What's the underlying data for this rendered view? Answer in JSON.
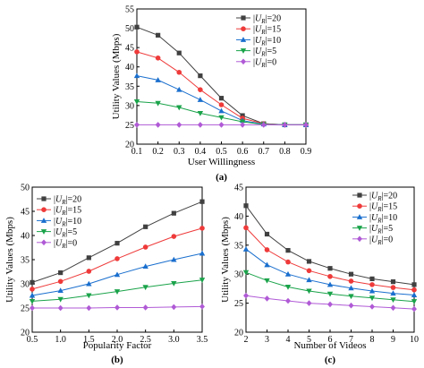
{
  "legend_prefix": "U",
  "legend_sub": "R",
  "colors": [
    "#404040",
    "#ef3a3a",
    "#1a6fce",
    "#1aa34a",
    "#b05ad6"
  ],
  "markers": [
    "square",
    "circle",
    "triangle-up",
    "triangle-down",
    "diamond"
  ],
  "chart_data": [
    {
      "type": "line",
      "panel_label": "(a)",
      "xlabel": "User Willingness",
      "ylabel": "Utility Values (Mbps)",
      "xlim": [
        0.1,
        0.9
      ],
      "ylim": [
        20,
        55
      ],
      "xticks": [
        "0.1",
        "0.2",
        "0.3",
        "0.4",
        "0.5",
        "0.6",
        "0.7",
        "0.8",
        "0.9"
      ],
      "yticks": [
        "20",
        "25",
        "30",
        "35",
        "40",
        "45",
        "50",
        "55"
      ],
      "legend_position": "top-right",
      "x": [
        0.1,
        0.2,
        0.3,
        0.4,
        0.5,
        0.6,
        0.7,
        0.8,
        0.9
      ],
      "series": [
        {
          "legend_value": "=20",
          "values": [
            50.3,
            48.2,
            43.6,
            37.7,
            31.9,
            27.4,
            25.3,
            25.0,
            25.0
          ]
        },
        {
          "legend_value": "=15",
          "values": [
            43.9,
            42.3,
            38.6,
            34.1,
            30.2,
            26.7,
            25.3,
            25.0,
            25.0
          ]
        },
        {
          "legend_value": "=10",
          "values": [
            37.7,
            36.6,
            34.1,
            31.5,
            28.6,
            26.1,
            25.2,
            25.0,
            25.0
          ]
        },
        {
          "legend_value": "=5",
          "values": [
            31.0,
            30.6,
            29.5,
            28.0,
            26.9,
            25.8,
            25.1,
            25.0,
            25.0
          ]
        },
        {
          "legend_value": "=0",
          "values": [
            25.0,
            25.0,
            25.0,
            25.0,
            25.0,
            25.0,
            25.0,
            25.0,
            25.0
          ]
        }
      ]
    },
    {
      "type": "line",
      "panel_label": "(b)",
      "xlabel": "Popularity Factor",
      "ylabel": "Utility Values (Mbps)",
      "xlim": [
        0.5,
        3.5
      ],
      "ylim": [
        20,
        50
      ],
      "xticks": [
        "0.5",
        "1.0",
        "1.5",
        "2.0",
        "2.5",
        "3.0",
        "3.5"
      ],
      "yticks": [
        "20",
        "25",
        "30",
        "35",
        "40",
        "45",
        "50"
      ],
      "legend_position": "top-left",
      "x": [
        0.5,
        1.0,
        1.5,
        2.0,
        2.5,
        3.0,
        3.5
      ],
      "series": [
        {
          "legend_value": "=20",
          "values": [
            30.3,
            32.3,
            35.4,
            38.4,
            41.8,
            44.6,
            47.0
          ]
        },
        {
          "legend_value": "=15",
          "values": [
            28.9,
            30.5,
            32.6,
            35.2,
            37.6,
            39.8,
            41.5
          ]
        },
        {
          "legend_value": "=10",
          "values": [
            27.6,
            28.6,
            30.0,
            31.9,
            33.6,
            35.0,
            36.3
          ]
        },
        {
          "legend_value": "=5",
          "values": [
            26.4,
            26.8,
            27.6,
            28.4,
            29.3,
            30.1,
            30.8
          ]
        },
        {
          "legend_value": "=0",
          "values": [
            25.0,
            25.0,
            25.0,
            25.1,
            25.1,
            25.2,
            25.3
          ]
        }
      ]
    },
    {
      "type": "line",
      "panel_label": "(c)",
      "xlabel": "Number of Videos",
      "ylabel": "Utility Values (Mbps)",
      "xlim": [
        2,
        10
      ],
      "ylim": [
        20,
        45
      ],
      "xticks": [
        "2",
        "3",
        "4",
        "5",
        "6",
        "7",
        "8",
        "9",
        "10"
      ],
      "yticks": [
        "20",
        "25",
        "30",
        "35",
        "40",
        "45"
      ],
      "legend_position": "top-right",
      "x": [
        2,
        3,
        4,
        5,
        6,
        7,
        8,
        9,
        10
      ],
      "series": [
        {
          "legend_value": "=20",
          "values": [
            41.8,
            36.9,
            34.1,
            32.2,
            31.0,
            30.0,
            29.2,
            28.7,
            28.2
          ]
        },
        {
          "legend_value": "=15",
          "values": [
            38.0,
            34.2,
            32.1,
            30.6,
            29.6,
            28.8,
            28.2,
            27.7,
            27.3
          ]
        },
        {
          "legend_value": "=10",
          "values": [
            34.3,
            31.6,
            30.0,
            29.0,
            28.2,
            27.6,
            27.1,
            26.7,
            26.4
          ]
        },
        {
          "legend_value": "=5",
          "values": [
            30.3,
            28.9,
            27.8,
            27.1,
            26.6,
            26.2,
            25.9,
            25.6,
            25.3
          ]
        },
        {
          "legend_value": "=0",
          "values": [
            26.3,
            25.8,
            25.4,
            25.0,
            24.8,
            24.6,
            24.4,
            24.2,
            24.0
          ]
        }
      ]
    }
  ]
}
